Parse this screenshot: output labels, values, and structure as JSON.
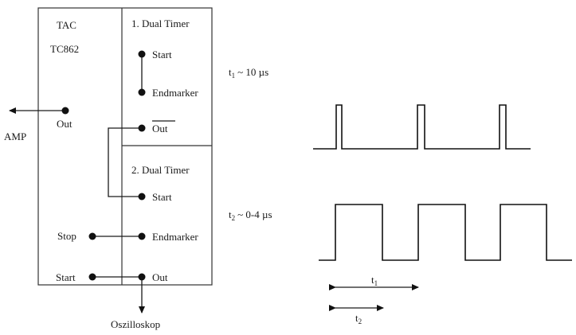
{
  "tac": {
    "name": "TAC",
    "model": "TC862",
    "out_label": "Out",
    "amp_label": "AMP",
    "stop_label": "Stop",
    "start_label": "Start"
  },
  "timer1": {
    "title": "1. Dual Timer",
    "start_label": "Start",
    "endmarker_label": "Endmarker",
    "out_label": "Out",
    "out_overlined": true
  },
  "timer2": {
    "title": "2. Dual Timer",
    "start_label": "Start",
    "endmarker_label": "Endmarker",
    "out_label": "Out"
  },
  "oscilloscope_label": "Oszilloskop",
  "signals": {
    "t1_symbol": "t",
    "t1_subscript": "1",
    "t1_value": "~ 10 µs",
    "t2_symbol": "t",
    "t2_subscript": "2",
    "t2_value": "~ 0-4 µs",
    "t1_arrow_symbol": "t",
    "t1_arrow_subscript": "1",
    "t2_arrow_symbol": "t",
    "t2_arrow_subscript": "2"
  }
}
